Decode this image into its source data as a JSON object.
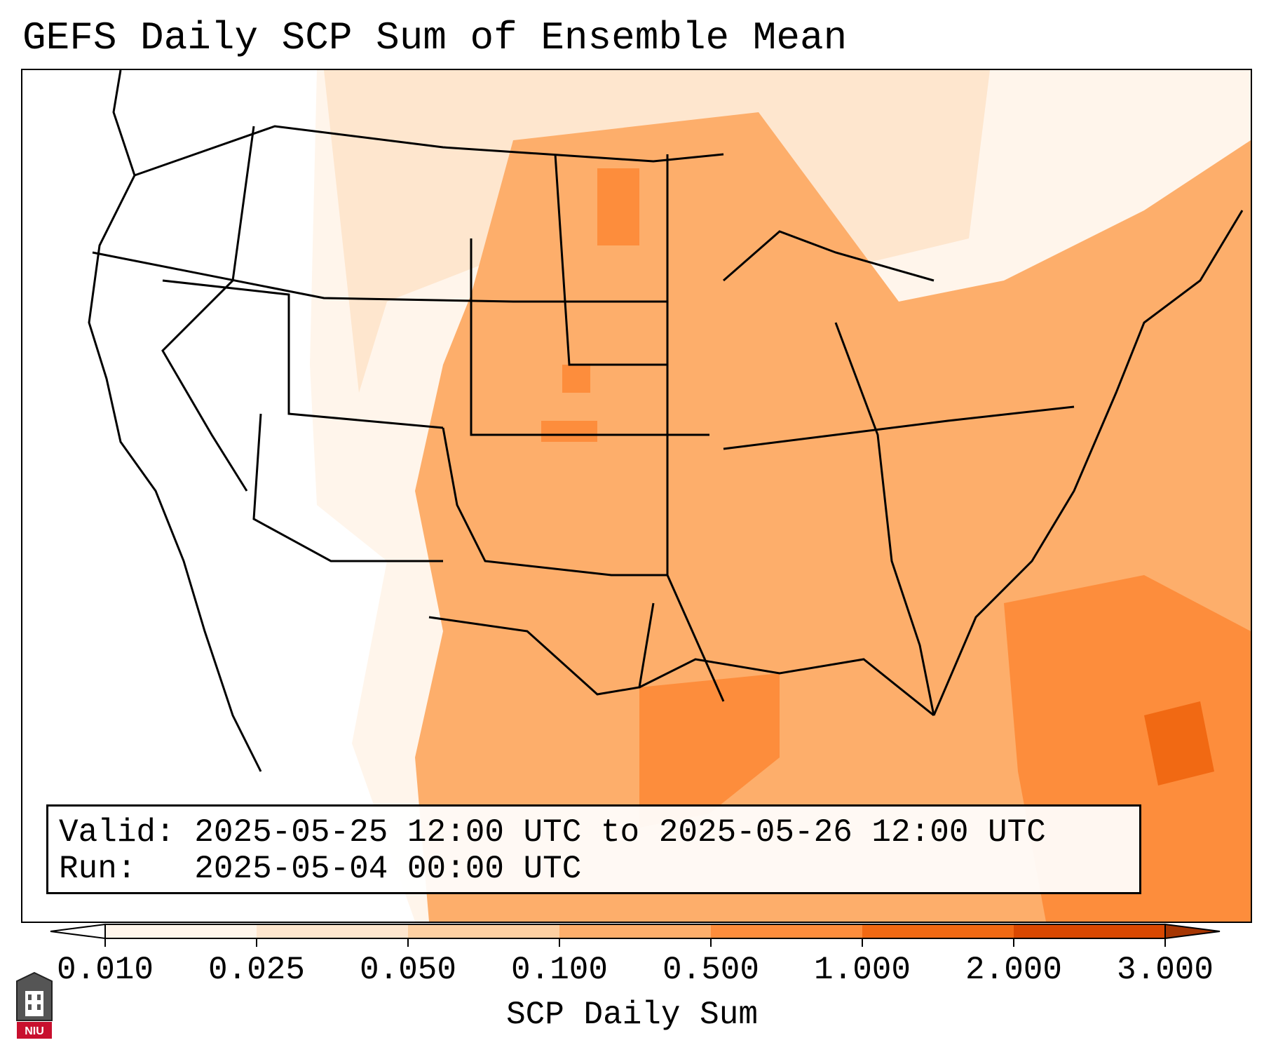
{
  "title": "GEFS Daily SCP Sum of Ensemble Mean",
  "info": {
    "valid_label": "Valid:",
    "valid_value": "2025-05-25 12:00 UTC to 2025-05-26 12:00 UTC",
    "run_label": "Run:",
    "run_value": "2025-05-04 00:00 UTC"
  },
  "colorbar": {
    "label": "SCP Daily Sum",
    "ticks": [
      "0.010",
      "0.025",
      "0.050",
      "0.100",
      "0.500",
      "1.000",
      "2.000",
      "3.000"
    ],
    "colors": [
      "#fff5eb",
      "#fee6ce",
      "#fdd0a2",
      "#fdae6b",
      "#fd8d3c",
      "#f16913",
      "#d94801",
      "#a63603"
    ]
  },
  "logo": {
    "icon": "niu-logo-icon",
    "text": "NIU",
    "color": "#c8102e"
  }
}
